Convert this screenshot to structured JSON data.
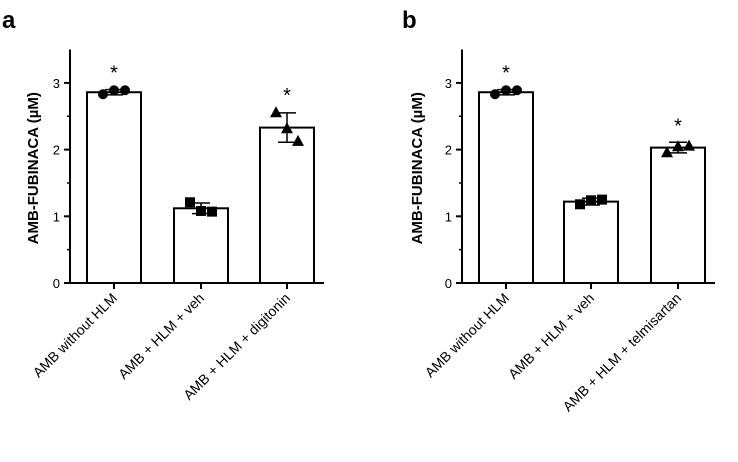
{
  "figure": {
    "panels": [
      "a",
      "b"
    ]
  },
  "chart_data": [
    {
      "type": "bar",
      "panel_label": "a",
      "ylabel": "AMB-FUBINACA (µM)",
      "ylim": [
        0,
        3.5
      ],
      "yticks": [
        "0",
        "1",
        "2",
        "3"
      ],
      "categories": [
        "AMB without HLM",
        "AMB + HLM + veh",
        "AMB + HLM + digitonin"
      ],
      "values": [
        2.86,
        1.12,
        2.33
      ],
      "errors": [
        0.04,
        0.08,
        0.22
      ],
      "points": [
        {
          "marker": "circle",
          "values": [
            2.83,
            2.89,
            2.89
          ]
        },
        {
          "marker": "square",
          "values": [
            1.21,
            1.08,
            1.07
          ]
        },
        {
          "marker": "triangle",
          "values": [
            2.56,
            2.32,
            2.13
          ]
        }
      ],
      "significance": [
        "*",
        "",
        "*"
      ],
      "bar_color": "#ffffff",
      "edge_color": "#000000"
    },
    {
      "type": "bar",
      "panel_label": "b",
      "ylabel": "AMB-FUBINACA (µM)",
      "ylim": [
        0,
        3.5
      ],
      "yticks": [
        "0",
        "1",
        "2",
        "3"
      ],
      "categories": [
        "AMB without HLM",
        "AMB + HLM + veh",
        "AMB + HLM + telmisartan"
      ],
      "values": [
        2.86,
        1.22,
        2.03
      ],
      "errors": [
        0.04,
        0.05,
        0.08
      ],
      "points": [
        {
          "marker": "circle",
          "values": [
            2.83,
            2.89,
            2.89
          ]
        },
        {
          "marker": "square",
          "values": [
            1.18,
            1.24,
            1.25
          ]
        },
        {
          "marker": "triangle",
          "values": [
            1.96,
            2.05,
            2.06
          ]
        }
      ],
      "significance": [
        "*",
        "",
        "*"
      ],
      "bar_color": "#ffffff",
      "edge_color": "#000000"
    }
  ]
}
